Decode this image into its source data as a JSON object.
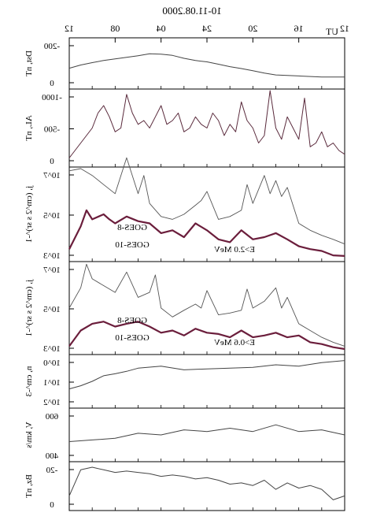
{
  "chart_data": {
    "title": "10-11.08.2000",
    "x_axis": {
      "label": "UT",
      "tick_labels": [
        "12",
        "16",
        "20",
        "24",
        "04",
        "08",
        "12"
      ]
    },
    "panels": [
      {
        "id": "dst",
        "type": "line",
        "ylabel": "Dst, nT",
        "tick_labels": [
          "-200",
          "0"
        ],
        "ylim": [
          50,
          -250
        ],
        "x": [
          0,
          2,
          4,
          6,
          7,
          8,
          9,
          10,
          11,
          12,
          13,
          14,
          15,
          16,
          17,
          18,
          19,
          20,
          21,
          22,
          23,
          24
        ],
        "values": [
          -15,
          -15,
          -22,
          -28,
          -40,
          -55,
          -68,
          -80,
          -95,
          -110,
          -118,
          -132,
          -150,
          -158,
          -160,
          -148,
          -138,
          -128,
          -118,
          -105,
          -90,
          -70
        ]
      },
      {
        "id": "al",
        "type": "line",
        "ylabel": "AL, nT",
        "tick_labels": [
          "-1000",
          "-500",
          "0"
        ],
        "ylim": [
          0,
          -1000
        ],
        "x": [
          0,
          0.5,
          1,
          1.5,
          2,
          2.5,
          3,
          3.5,
          4,
          4.5,
          5,
          5.5,
          6,
          6.5,
          7,
          7.5,
          8,
          8.5,
          9,
          9.5,
          10,
          10.5,
          11,
          11.5,
          12,
          12.5,
          13,
          13.5,
          14,
          14.5,
          15,
          15.5,
          16,
          16.5,
          17,
          17.5,
          18,
          18.5,
          19,
          19.5,
          20,
          20.5,
          21,
          21.5,
          22,
          22.5,
          23,
          23.5,
          24
        ],
        "values": [
          -150,
          -200,
          -300,
          -250,
          -450,
          -300,
          -250,
          -900,
          -350,
          -500,
          -650,
          -350,
          -500,
          -1000,
          -400,
          -300,
          -500,
          -600,
          -850,
          -450,
          -550,
          -400,
          -600,
          -700,
          -500,
          -550,
          -650,
          -500,
          -450,
          -700,
          -600,
          -550,
          -800,
          -650,
          -500,
          -600,
          -550,
          -700,
          -950,
          -500,
          -450,
          -650,
          -800,
          -700,
          -500,
          -400,
          -300,
          -200,
          -100
        ]
      },
      {
        "id": "goes_e2",
        "type": "line",
        "ylabel": "j, (cm^2 s sr)^-1",
        "scale": "log",
        "tick_labels": [
          "10^7",
          "10^5",
          "10^3"
        ],
        "ylim": [
          1000,
          10000000
        ],
        "annotation": "E>2.0 MeV",
        "series": [
          {
            "name": "GOES-8",
            "x": [
              0,
              1,
              2,
              3,
              4,
              5,
              5.5,
              6,
              6.5,
              7,
              8,
              8.5,
              9,
              10,
              11,
              12,
              12.5,
              13,
              14,
              15,
              16,
              17,
              17.5,
              18,
              19,
              20,
              21,
              22,
              23,
              24
            ],
            "values": [
              5000,
              8000,
              12000,
              20000,
              40000,
              1500000,
              600000,
              3000000,
              800000,
              5000000,
              300000,
              2000000,
              150000,
              80000,
              60000,
              1000000,
              400000,
              250000,
              100000,
              60000,
              80000,
              300000,
              5000000,
              800000,
              30000000,
              800000,
              2000000,
              5000000,
              10000000,
              8000000
            ]
          },
          {
            "name": "GOES-10",
            "x": [
              0,
              1,
              2,
              3,
              4,
              5,
              6,
              7,
              8,
              9,
              10,
              11,
              12,
              13,
              14,
              15,
              16,
              17,
              18,
              19,
              20,
              20.5,
              21,
              22,
              22.5,
              23,
              24
            ],
            "values": [
              1500,
              1600,
              2500,
              3000,
              4000,
              8000,
              15000,
              10000,
              8000,
              20000,
              6000,
              8000,
              20000,
              40000,
              10000,
              20000,
              15000,
              40000,
              50000,
              80000,
              40000,
              60000,
              100000,
              60000,
              150000,
              30000,
              3000
            ]
          }
        ]
      },
      {
        "id": "goes_e06",
        "type": "line",
        "ylabel": "j, (cm^2 s sr)^-1",
        "scale": "log",
        "tick_labels": [
          "10^7",
          "10^5",
          "10^3"
        ],
        "ylim": [
          1000,
          10000000
        ],
        "annotation": "E>0.6 MeV",
        "series": [
          {
            "name": "GOES-8",
            "x": [
              0,
              1,
              2,
              3,
              4,
              5,
              5.5,
              6,
              7,
              8,
              8.5,
              9,
              10,
              11,
              12,
              12.5,
              13,
              14,
              15,
              16,
              16.5,
              17,
              18,
              19,
              20,
              21,
              22,
              22.5,
              23,
              24
            ],
            "values": [
              2000,
              3000,
              5000,
              10000,
              20000,
              300000,
              100000,
              800000,
              200000,
              100000,
              700000,
              80000,
              60000,
              50000,
              600000,
              100000,
              150000,
              80000,
              40000,
              100000,
              3000000,
              500000,
              300000,
              4000000,
              500000,
              1000000,
              2000000,
              9000000,
              800000,
              100000
            ]
          },
          {
            "name": "GOES-10",
            "x": [
              0,
              1,
              2,
              3,
              4,
              5,
              6,
              7,
              8,
              9,
              10,
              11,
              12,
              13,
              14,
              15,
              16,
              17,
              18,
              19,
              20,
              21,
              22,
              23,
              24
            ],
            "values": [
              1500,
              1800,
              2500,
              3000,
              6000,
              5000,
              8000,
              6000,
              5000,
              10000,
              5000,
              7000,
              8000,
              12000,
              6000,
              10000,
              8000,
              15000,
              25000,
              20000,
              15000,
              25000,
              20000,
              10000,
              2000
            ]
          }
        ]
      },
      {
        "id": "density",
        "type": "line",
        "ylabel": "n, cm^-3",
        "scale": "log",
        "tick_labels": [
          "10^0",
          "10^1",
          "10^2"
        ],
        "ylim": [
          100,
          1
        ],
        "x": [
          0,
          2,
          4,
          6,
          8,
          10,
          12,
          14,
          16,
          18,
          19,
          20,
          21,
          22,
          23,
          24
        ],
        "values": [
          1.5,
          1.8,
          2.5,
          2.2,
          2.8,
          3.0,
          3.2,
          3.5,
          2.5,
          3.0,
          4.0,
          5.0,
          6.0,
          10.0,
          15.0,
          20.0
        ]
      },
      {
        "id": "velocity",
        "type": "line",
        "ylabel": "V, km/s",
        "tick_labels": [
          "600",
          "400"
        ],
        "ylim": [
          350,
          650
        ],
        "x": [
          0,
          2,
          4,
          6,
          8,
          10,
          12,
          14,
          16,
          18,
          20,
          22,
          24
        ],
        "values": [
          500,
          530,
          520,
          560,
          520,
          540,
          520,
          530,
          500,
          510,
          480,
          470,
          460
        ]
      },
      {
        "id": "bz",
        "type": "line",
        "ylabel": "Bz, nT",
        "tick_labels": [
          "-20",
          "0"
        ],
        "ylim": [
          10,
          -25
        ],
        "x": [
          0,
          1,
          2,
          3,
          4,
          5,
          6,
          7,
          8,
          9,
          10,
          11,
          12,
          13,
          14,
          15,
          16,
          17,
          18,
          19,
          20,
          21,
          22,
          23,
          24
        ],
        "values": [
          0,
          3,
          -5,
          -8,
          -6,
          -10,
          -5,
          -12,
          -8,
          -10,
          -9,
          -12,
          -14,
          -13,
          -15,
          -16,
          -15,
          -17,
          -18,
          -19,
          -18,
          -20,
          -22,
          -20,
          0
        ]
      }
    ]
  }
}
